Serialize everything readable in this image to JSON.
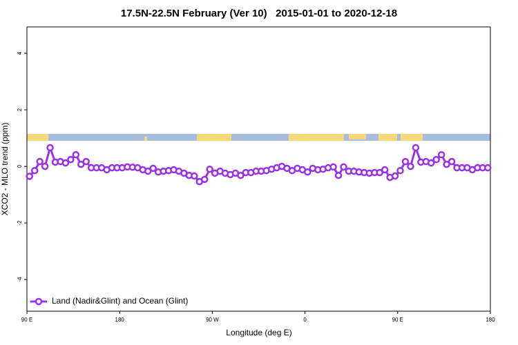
{
  "chart_data": {
    "type": "line",
    "title": "17.5N-22.5N February (Ver 10)   2015-01-01 to 2020-12-18",
    "xlabel": "Longitude (deg E)",
    "ylabel": "XCO2 - MLO trend (ppm)",
    "xlim": [
      90,
      540
    ],
    "ylim": [
      -5.12,
      4.93
    ],
    "xticks": [
      {
        "value": 90,
        "label": "90 E"
      },
      180,
      {
        "value": 270,
        "label": "90 W"
      },
      {
        "value": 360,
        "label": "0"
      },
      {
        "value": 450,
        "label": "90 E"
      },
      {
        "value": 540,
        "label": "180"
      }
    ],
    "yticks": [
      -4,
      -2,
      0,
      2,
      4
    ],
    "legend": "bottom-left",
    "x": [
      92.5,
      97.5,
      102.5,
      107.5,
      112.5,
      117.5,
      122.5,
      127.5,
      132.5,
      137.5,
      142.5,
      147.5,
      152.5,
      157.5,
      162.5,
      167.5,
      172.5,
      177.5,
      182.5,
      187.5,
      192.5,
      197.5,
      202.5,
      207.5,
      212.5,
      217.5,
      222.5,
      227.5,
      232.5,
      237.5,
      242.5,
      247.5,
      252.5,
      257.5,
      262.5,
      267.5,
      272.5,
      277.5,
      282.5,
      287.5,
      292.5,
      297.5,
      302.5,
      307.5,
      312.5,
      317.5,
      322.5,
      327.5,
      332.5,
      337.5,
      342.5,
      347.5,
      352.5,
      357.5,
      362.5,
      367.5,
      372.5,
      377.5,
      382.5,
      387.5,
      392.5,
      397.5,
      402.5,
      407.5,
      412.5,
      417.5,
      422.5,
      427.5,
      432.5,
      437.5,
      442.5,
      447.5,
      452.5,
      457.5,
      462.5,
      467.5,
      472.5,
      477.5,
      482.5,
      487.5,
      492.5,
      497.5,
      502.5,
      507.5,
      512.5,
      517.5,
      522.5,
      527.5,
      532.5,
      537.5
    ],
    "series": [
      {
        "name": "Land (Nadir&Glint) and Ocean (Glint)",
        "color": "#9b30e8",
        "values": [
          -0.35,
          -0.15,
          0.17,
          0.0,
          0.66,
          0.15,
          0.17,
          0.12,
          0.24,
          0.41,
          0.07,
          0.17,
          -0.05,
          -0.05,
          -0.05,
          -0.12,
          -0.05,
          -0.05,
          -0.05,
          -0.02,
          -0.03,
          -0.05,
          -0.12,
          -0.17,
          -0.07,
          -0.2,
          -0.17,
          -0.15,
          -0.12,
          -0.17,
          -0.24,
          -0.32,
          -0.34,
          -0.54,
          -0.46,
          -0.1,
          -0.24,
          -0.17,
          -0.24,
          -0.29,
          -0.24,
          -0.32,
          -0.22,
          -0.22,
          -0.17,
          -0.17,
          -0.15,
          -0.1,
          -0.05,
          0.0,
          -0.07,
          -0.15,
          -0.07,
          -0.12,
          -0.2,
          -0.07,
          -0.12,
          -0.1,
          -0.05,
          -0.02,
          -0.32,
          -0.02,
          -0.17,
          -0.17,
          -0.2,
          -0.22,
          -0.24,
          -0.22,
          -0.22,
          -0.12,
          -0.39,
          -0.34,
          -0.15,
          0.17,
          0.0,
          0.66,
          0.15,
          0.17,
          0.12,
          0.24,
          0.41,
          0.07,
          0.17,
          -0.05,
          -0.05,
          -0.05,
          -0.12,
          -0.05,
          -0.05,
          -0.05
        ]
      }
    ]
  }
}
